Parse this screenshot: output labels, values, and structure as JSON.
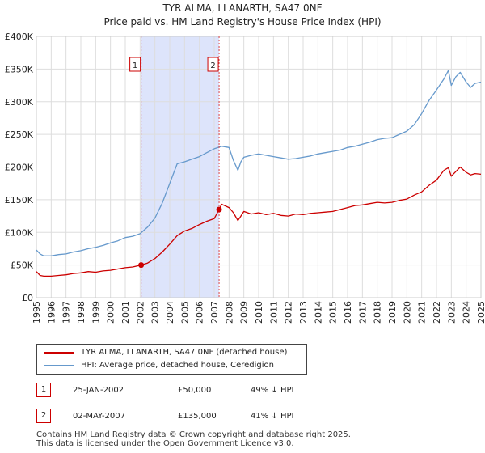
{
  "header": {
    "title": "TYR ALMA, LLANARTH, SA47 0NF",
    "subtitle": "Price paid vs. HM Land Registry's House Price Index (HPI)"
  },
  "chart_data": {
    "type": "line",
    "title": "TYR ALMA, LLANARTH, SA47 0NF",
    "subtitle": "Price paid vs. HM Land Registry's House Price Index (HPI)",
    "xlabel": "",
    "ylabel": "",
    "xlim": [
      1995,
      2025
    ],
    "ylim": [
      0,
      400000
    ],
    "x_ticks": [
      "1995",
      "1996",
      "1997",
      "1998",
      "1999",
      "2000",
      "2001",
      "2002",
      "2003",
      "2004",
      "2005",
      "2006",
      "2007",
      "2008",
      "2009",
      "2010",
      "2011",
      "2012",
      "2013",
      "2014",
      "2015",
      "2016",
      "2017",
      "2018",
      "2019",
      "2020",
      "2021",
      "2022",
      "2023",
      "2024",
      "2025"
    ],
    "y_ticks": [
      {
        "value": 0,
        "label": "£0"
      },
      {
        "value": 50000,
        "label": "£50K"
      },
      {
        "value": 100000,
        "label": "£100K"
      },
      {
        "value": 150000,
        "label": "£150K"
      },
      {
        "value": 200000,
        "label": "£200K"
      },
      {
        "value": 250000,
        "label": "£250K"
      },
      {
        "value": 300000,
        "label": "£300K"
      },
      {
        "value": 350000,
        "label": "£350K"
      },
      {
        "value": 400000,
        "label": "£400K"
      }
    ],
    "grid": true,
    "shaded_region": {
      "from": 2002.07,
      "to": 2007.33,
      "color": "#dde4fb"
    },
    "series": [
      {
        "name": "TYR ALMA, LLANARTH, SA47 0NF (detached house)",
        "color": "#cc0000",
        "x": [
          1995.0,
          1995.25,
          1995.5,
          1996,
          1996.5,
          1997,
          1997.5,
          1998,
          1998.5,
          1999,
          1999.5,
          2000,
          2000.5,
          2001,
          2001.5,
          2002.07,
          2002.5,
          2003,
          2003.5,
          2004,
          2004.5,
          2005,
          2005.5,
          2006,
          2006.5,
          2007,
          2007.33,
          2007.5,
          2008,
          2008.3,
          2008.6,
          2008.8,
          2009,
          2009.5,
          2010,
          2010.5,
          2011,
          2011.5,
          2012,
          2012.5,
          2013,
          2013.5,
          2014,
          2014.5,
          2015,
          2015.5,
          2016,
          2016.5,
          2017,
          2017.5,
          2018,
          2018.5,
          2019,
          2019.5,
          2020,
          2020.5,
          2021,
          2021.5,
          2022,
          2022.5,
          2022.8,
          2023,
          2023.3,
          2023.6,
          2024,
          2024.3,
          2024.6,
          2025
        ],
        "values": [
          40000,
          34000,
          33000,
          33000,
          34000,
          35000,
          37000,
          38000,
          40000,
          39000,
          41000,
          42000,
          44000,
          46000,
          47000,
          50000,
          53000,
          60000,
          70000,
          82000,
          95000,
          102000,
          106000,
          112000,
          117000,
          121000,
          135000,
          143000,
          138000,
          130000,
          118000,
          125000,
          132000,
          128000,
          130000,
          127000,
          129000,
          126000,
          125000,
          128000,
          127000,
          129000,
          130000,
          131000,
          132000,
          135000,
          138000,
          141000,
          142000,
          144000,
          146000,
          145000,
          146000,
          149000,
          151000,
          157000,
          162000,
          172000,
          180000,
          195000,
          199000,
          186000,
          193000,
          200000,
          192000,
          188000,
          190000,
          189000
        ]
      },
      {
        "name": "HPI: Average price, detached house, Ceredigion",
        "color": "#6699cc",
        "x": [
          1995.0,
          1995.25,
          1995.5,
          1996,
          1996.5,
          1997,
          1997.5,
          1998,
          1998.5,
          1999,
          1999.5,
          2000,
          2000.5,
          2001,
          2001.5,
          2002,
          2002.5,
          2003,
          2003.5,
          2004,
          2004.5,
          2005,
          2005.5,
          2006,
          2006.5,
          2007,
          2007.5,
          2008,
          2008.3,
          2008.6,
          2008.8,
          2009,
          2009.5,
          2010,
          2010.5,
          2011,
          2011.5,
          2012,
          2012.5,
          2013,
          2013.5,
          2014,
          2014.5,
          2015,
          2015.5,
          2016,
          2016.5,
          2017,
          2017.5,
          2018,
          2018.5,
          2019,
          2019.5,
          2020,
          2020.5,
          2021,
          2021.5,
          2022,
          2022.5,
          2022.8,
          2023,
          2023.3,
          2023.6,
          2024,
          2024.3,
          2024.6,
          2025
        ],
        "values": [
          73000,
          67000,
          64000,
          64000,
          66000,
          67000,
          70000,
          72000,
          75000,
          77000,
          80000,
          84000,
          87000,
          92000,
          94000,
          98000,
          108000,
          122000,
          145000,
          175000,
          205000,
          208000,
          212000,
          216000,
          222000,
          228000,
          232000,
          230000,
          210000,
          195000,
          208000,
          215000,
          218000,
          220000,
          218000,
          216000,
          214000,
          212000,
          213000,
          215000,
          217000,
          220000,
          222000,
          224000,
          226000,
          230000,
          232000,
          235000,
          238000,
          242000,
          244000,
          245000,
          250000,
          255000,
          265000,
          282000,
          302000,
          318000,
          335000,
          348000,
          325000,
          338000,
          345000,
          330000,
          322000,
          328000,
          330000
        ]
      }
    ],
    "markers": [
      {
        "label": "1",
        "x": 2002.07,
        "value": 50000
      },
      {
        "label": "2",
        "x": 2007.33,
        "value": 135000
      }
    ]
  },
  "legend": {
    "items": [
      {
        "label": "TYR ALMA, LLANARTH, SA47 0NF (detached house)",
        "color": "#cc0000"
      },
      {
        "label": "HPI: Average price, detached house, Ceredigion",
        "color": "#6699cc"
      }
    ]
  },
  "transactions": [
    {
      "num": "1",
      "date": "25-JAN-2002",
      "price": "£50,000",
      "hpi": "49% ↓ HPI"
    },
    {
      "num": "2",
      "date": "02-MAY-2007",
      "price": "£135,000",
      "hpi": "41% ↓ HPI"
    }
  ],
  "footer": {
    "line1": "Contains HM Land Registry data © Crown copyright and database right 2025.",
    "line2": "This data is licensed under the Open Government Licence v3.0."
  }
}
